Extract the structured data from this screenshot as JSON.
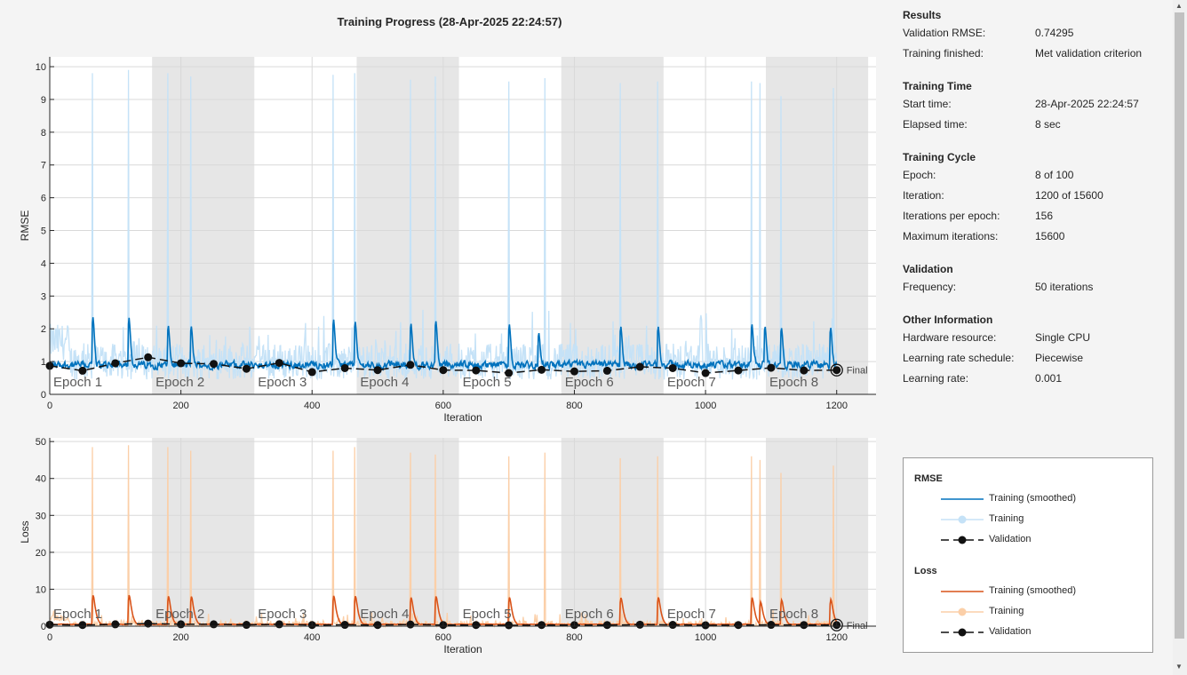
{
  "window": {
    "title": "Training Progress (28-Apr-2025 22:24:57)"
  },
  "colors": {
    "rmse_smooth": "#0072bd",
    "rmse_raw": "#c5e2f7",
    "loss_smooth": "#d95319",
    "loss_raw": "#fbcfa8",
    "validation": "#111111",
    "epoch_band": "#e6e6e6"
  },
  "info": {
    "results": {
      "title": "Results",
      "rows": [
        {
          "key": "Validation RMSE:",
          "value": "0.74295"
        },
        {
          "key": "Training finished:",
          "value": "Met validation criterion"
        }
      ]
    },
    "time": {
      "title": "Training Time",
      "rows": [
        {
          "key": "Start time:",
          "value": "28-Apr-2025 22:24:57"
        },
        {
          "key": "Elapsed time:",
          "value": "8 sec"
        }
      ]
    },
    "cycle": {
      "title": "Training Cycle",
      "rows": [
        {
          "key": "Epoch:",
          "value": "8 of 100"
        },
        {
          "key": "Iteration:",
          "value": "1200 of 15600"
        },
        {
          "key": "Iterations per epoch:",
          "value": "156"
        },
        {
          "key": "Maximum iterations:",
          "value": "15600"
        }
      ]
    },
    "validation": {
      "title": "Validation",
      "rows": [
        {
          "key": "Frequency:",
          "value": "50 iterations"
        }
      ]
    },
    "other": {
      "title": "Other Information",
      "rows": [
        {
          "key": "Hardware resource:",
          "value": "Single CPU"
        },
        {
          "key": "Learning rate schedule:",
          "value": "Piecewise"
        },
        {
          "key": "Learning rate:",
          "value": "0.001"
        }
      ]
    }
  },
  "legend": {
    "rmse_title": "RMSE",
    "loss_title": "Loss",
    "items": [
      "Training (smoothed)",
      "Training",
      "Validation"
    ]
  },
  "chart_data": [
    {
      "type": "line",
      "xlabel": "Iteration",
      "ylabel": "RMSE",
      "xlim": [
        0,
        1260
      ],
      "ylim": [
        0,
        10.3
      ],
      "xticks": [
        0,
        200,
        400,
        600,
        800,
        1000,
        1200
      ],
      "yticks": [
        0,
        1,
        2,
        3,
        4,
        5,
        6,
        7,
        8,
        9,
        10
      ],
      "grid": true,
      "epochs": [
        "Epoch 1",
        "Epoch 2",
        "Epoch 3",
        "Epoch 4",
        "Epoch 5",
        "Epoch 6",
        "Epoch 7",
        "Epoch 8"
      ],
      "iterations_per_epoch": 156,
      "final_label": "Final",
      "series": [
        {
          "name": "Training (smoothed)",
          "baseline": 0.9,
          "spikes": [
            [
              65,
              3.2
            ],
            [
              120,
              3.2
            ],
            [
              180,
              2.8
            ],
            [
              215,
              2.8
            ],
            [
              432,
              3.1
            ],
            [
              465,
              3.0
            ],
            [
              550,
              2.9
            ],
            [
              588,
              3.0
            ],
            [
              700,
              2.9
            ],
            [
              745,
              2.5
            ],
            [
              870,
              2.8
            ],
            [
              927,
              2.8
            ],
            [
              1070,
              2.85
            ],
            [
              1090,
              2.75
            ],
            [
              1115,
              2.7
            ],
            [
              1190,
              2.75
            ]
          ]
        },
        {
          "name": "Training",
          "spikes": [
            [
              65,
              9.8
            ],
            [
              120,
              9.9
            ],
            [
              180,
              9.8
            ],
            [
              215,
              9.7
            ],
            [
              432,
              9.75
            ],
            [
              465,
              9.8
            ],
            [
              550,
              9.6
            ],
            [
              588,
              9.7
            ],
            [
              700,
              9.55
            ],
            [
              755,
              9.65
            ],
            [
              870,
              9.5
            ],
            [
              927,
              9.55
            ],
            [
              1070,
              9.55
            ],
            [
              1083,
              9.5
            ],
            [
              1115,
              9.1
            ],
            [
              1195,
              9.35
            ]
          ]
        },
        {
          "name": "Validation",
          "x": [
            0,
            50,
            100,
            150,
            200,
            250,
            300,
            350,
            400,
            450,
            500,
            550,
            600,
            650,
            700,
            750,
            800,
            850,
            900,
            950,
            1000,
            1050,
            1100,
            1150,
            1200
          ],
          "y": [
            0.87,
            0.72,
            0.95,
            1.13,
            0.95,
            0.93,
            0.78,
            0.96,
            0.68,
            0.8,
            0.74,
            0.9,
            0.74,
            0.73,
            0.65,
            0.75,
            0.7,
            0.72,
            0.84,
            0.8,
            0.65,
            0.73,
            0.81,
            0.73,
            0.74
          ]
        }
      ]
    },
    {
      "type": "line",
      "xlabel": "Iteration",
      "ylabel": "Loss",
      "xlim": [
        0,
        1260
      ],
      "ylim": [
        0,
        51
      ],
      "xticks": [
        0,
        200,
        400,
        600,
        800,
        1000,
        1200
      ],
      "yticks": [
        0,
        10,
        20,
        30,
        40,
        50
      ],
      "grid": true,
      "epochs": [
        "Epoch 1",
        "Epoch 2",
        "Epoch 3",
        "Epoch 4",
        "Epoch 5",
        "Epoch 6",
        "Epoch 7",
        "Epoch 8"
      ],
      "iterations_per_epoch": 156,
      "final_label": "Final",
      "series": [
        {
          "name": "Training (smoothed)",
          "baseline": 0.5,
          "spikes": [
            [
              65,
              12.2
            ],
            [
              120,
              12.3
            ],
            [
              180,
              11.8
            ],
            [
              215,
              11.7
            ],
            [
              432,
              12.0
            ],
            [
              465,
              11.9
            ],
            [
              550,
              11.3
            ],
            [
              588,
              11.8
            ],
            [
              700,
              11.4
            ],
            [
              870,
              11.2
            ],
            [
              927,
              11.4
            ],
            [
              1070,
              11.3
            ],
            [
              1083,
              9.5
            ],
            [
              1115,
              10.3
            ],
            [
              1190,
              10.6
            ]
          ]
        },
        {
          "name": "Training",
          "spikes": [
            [
              65,
              48.5
            ],
            [
              120,
              49.0
            ],
            [
              180,
              48.5
            ],
            [
              215,
              47.5
            ],
            [
              432,
              47.5
            ],
            [
              465,
              48.5
            ],
            [
              550,
              47.0
            ],
            [
              588,
              46.5
            ],
            [
              700,
              46.0
            ],
            [
              755,
              47.0
            ],
            [
              870,
              45.5
            ],
            [
              927,
              46.0
            ],
            [
              1070,
              46.0
            ],
            [
              1083,
              45.0
            ],
            [
              1115,
              41.5
            ],
            [
              1195,
              43.5
            ]
          ]
        },
        {
          "name": "Validation",
          "x": [
            0,
            50,
            100,
            150,
            200,
            250,
            300,
            350,
            400,
            450,
            500,
            550,
            600,
            650,
            700,
            750,
            800,
            850,
            900,
            950,
            1000,
            1050,
            1100,
            1150,
            1200
          ],
          "y": [
            0.4,
            0.3,
            0.5,
            0.7,
            0.5,
            0.5,
            0.35,
            0.5,
            0.3,
            0.35,
            0.3,
            0.45,
            0.3,
            0.3,
            0.25,
            0.3,
            0.3,
            0.3,
            0.4,
            0.35,
            0.25,
            0.3,
            0.35,
            0.3,
            0.3
          ]
        }
      ]
    }
  ]
}
